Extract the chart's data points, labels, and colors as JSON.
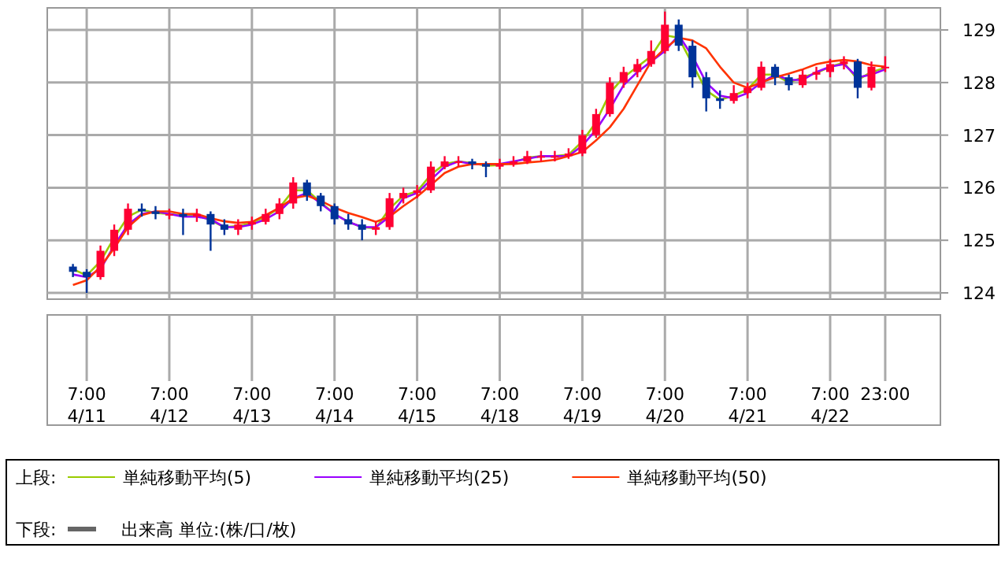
{
  "chart_data": {
    "type": "candlestick",
    "categories": [
      null,
      "7:00 4/11",
      null,
      null,
      null,
      null,
      null,
      "7:00 4/12",
      null,
      null,
      null,
      null,
      null,
      "7:00 4/13",
      null,
      null,
      null,
      null,
      null,
      "7:00 4/14",
      null,
      null,
      null,
      null,
      null,
      "7:00 4/15",
      null,
      null,
      null,
      null,
      null,
      "7:00 4/18",
      null,
      null,
      null,
      null,
      null,
      "7:00 4/19",
      null,
      null,
      null,
      null,
      null,
      "7:00 4/20",
      null,
      null,
      null,
      null,
      null,
      "7:00 4/21",
      null,
      null,
      null,
      null,
      null,
      "7:00 4/22",
      null,
      null,
      null,
      "23:00"
    ],
    "ohlc": [
      [
        124.5,
        124.55,
        124.3,
        124.4
      ],
      [
        124.4,
        124.45,
        124.0,
        124.3
      ],
      [
        124.3,
        124.9,
        124.25,
        124.8
      ],
      [
        124.8,
        125.3,
        124.7,
        125.2
      ],
      [
        125.2,
        125.7,
        125.1,
        125.6
      ],
      [
        125.6,
        125.7,
        125.45,
        125.55
      ],
      [
        125.55,
        125.65,
        125.4,
        125.5
      ],
      [
        125.5,
        125.6,
        125.4,
        125.5
      ],
      [
        125.5,
        125.6,
        125.1,
        125.45
      ],
      [
        125.45,
        125.6,
        125.35,
        125.5
      ],
      [
        125.5,
        125.55,
        124.8,
        125.3
      ],
      [
        125.3,
        125.4,
        125.1,
        125.2
      ],
      [
        125.2,
        125.4,
        125.1,
        125.3
      ],
      [
        125.3,
        125.45,
        125.2,
        125.35
      ],
      [
        125.35,
        125.6,
        125.3,
        125.5
      ],
      [
        125.5,
        125.8,
        125.4,
        125.7
      ],
      [
        125.7,
        126.2,
        125.6,
        126.1
      ],
      [
        126.1,
        126.15,
        125.75,
        125.85
      ],
      [
        125.85,
        125.9,
        125.55,
        125.65
      ],
      [
        125.65,
        125.7,
        125.3,
        125.4
      ],
      [
        125.4,
        125.5,
        125.2,
        125.3
      ],
      [
        125.3,
        125.4,
        125.0,
        125.2
      ],
      [
        125.2,
        125.35,
        125.1,
        125.25
      ],
      [
        125.25,
        125.9,
        125.2,
        125.8
      ],
      [
        125.8,
        126.0,
        125.7,
        125.9
      ],
      [
        125.9,
        126.05,
        125.8,
        125.95
      ],
      [
        125.95,
        126.5,
        125.9,
        126.4
      ],
      [
        126.4,
        126.6,
        126.35,
        126.5
      ],
      [
        126.5,
        126.6,
        126.4,
        126.5
      ],
      [
        126.5,
        126.55,
        126.35,
        126.45
      ],
      [
        126.45,
        126.5,
        126.2,
        126.4
      ],
      [
        126.4,
        126.55,
        126.35,
        126.45
      ],
      [
        126.45,
        126.6,
        126.4,
        126.5
      ],
      [
        126.5,
        126.7,
        126.45,
        126.6
      ],
      [
        126.6,
        126.7,
        126.5,
        126.6
      ],
      [
        126.6,
        126.7,
        126.5,
        126.6
      ],
      [
        126.6,
        126.75,
        126.55,
        126.65
      ],
      [
        126.65,
        127.1,
        126.6,
        127.0
      ],
      [
        127.0,
        127.5,
        126.95,
        127.4
      ],
      [
        127.4,
        128.1,
        127.35,
        128.0
      ],
      [
        128.0,
        128.3,
        127.9,
        128.2
      ],
      [
        128.2,
        128.45,
        128.1,
        128.35
      ],
      [
        128.35,
        128.8,
        128.3,
        128.6
      ],
      [
        128.6,
        129.35,
        128.55,
        129.1
      ],
      [
        129.1,
        129.2,
        128.6,
        128.7
      ],
      [
        128.7,
        128.8,
        127.9,
        128.1
      ],
      [
        128.1,
        128.2,
        127.45,
        127.7
      ],
      [
        127.7,
        127.85,
        127.5,
        127.65
      ],
      [
        127.65,
        127.95,
        127.6,
        127.8
      ],
      [
        127.8,
        128.0,
        127.7,
        127.9
      ],
      [
        127.9,
        128.4,
        127.85,
        128.3
      ],
      [
        128.3,
        128.35,
        127.95,
        128.1
      ],
      [
        128.1,
        128.15,
        127.85,
        127.95
      ],
      [
        127.95,
        128.25,
        127.9,
        128.15
      ],
      [
        128.15,
        128.3,
        128.05,
        128.2
      ],
      [
        128.2,
        128.45,
        128.1,
        128.35
      ],
      [
        128.35,
        128.5,
        128.25,
        128.4
      ],
      [
        128.4,
        128.45,
        127.7,
        127.9
      ],
      [
        127.9,
        128.4,
        127.85,
        128.3
      ],
      [
        128.3,
        128.5,
        128.2,
        128.3
      ]
    ],
    "ylim": [
      123.88,
      129.42
    ],
    "yticks": [
      124,
      125,
      126,
      127,
      128,
      129
    ],
    "grid": true,
    "legend": "bottom",
    "series": [
      {
        "name": "単純移動平均(5)",
        "type": "line",
        "color": "#99cc00",
        "values": [
          124.45,
          124.33,
          124.6,
          125.05,
          125.45,
          125.58,
          125.52,
          125.5,
          125.47,
          125.48,
          125.38,
          125.25,
          125.27,
          125.33,
          125.45,
          125.62,
          125.95,
          125.95,
          125.72,
          125.5,
          125.35,
          125.25,
          125.23,
          125.6,
          125.85,
          125.93,
          126.25,
          126.45,
          126.5,
          126.47,
          126.42,
          126.43,
          126.48,
          126.57,
          126.6,
          126.6,
          126.63,
          126.88,
          127.25,
          127.8,
          128.1,
          128.3,
          128.5,
          128.9,
          128.85,
          128.35,
          127.85,
          127.67,
          127.75,
          127.87,
          128.15,
          128.15,
          128.0,
          128.1,
          128.18,
          128.3,
          128.38,
          128.05,
          128.2,
          128.28
        ]
      },
      {
        "name": "単純移動平均(25)",
        "type": "line",
        "color": "#9900ff",
        "values": [
          124.35,
          124.3,
          124.45,
          124.9,
          125.3,
          125.5,
          125.55,
          125.5,
          125.45,
          125.45,
          125.4,
          125.25,
          125.25,
          125.3,
          125.4,
          125.55,
          125.8,
          125.9,
          125.7,
          125.5,
          125.35,
          125.25,
          125.25,
          125.45,
          125.8,
          125.9,
          126.15,
          126.4,
          126.5,
          126.45,
          126.45,
          126.45,
          126.5,
          126.55,
          126.6,
          126.6,
          126.6,
          126.8,
          127.1,
          127.5,
          127.95,
          128.2,
          128.4,
          128.6,
          128.9,
          128.5,
          128.0,
          127.75,
          127.7,
          127.8,
          128.0,
          128.15,
          128.05,
          128.05,
          128.2,
          128.3,
          128.35,
          128.1,
          128.15,
          128.25
        ]
      },
      {
        "name": "単純移動平均(50)",
        "type": "line",
        "color": "#ff3300",
        "values": [
          124.15,
          124.24,
          124.5,
          124.85,
          125.25,
          125.48,
          125.55,
          125.55,
          125.5,
          125.5,
          125.42,
          125.36,
          125.33,
          125.35,
          125.48,
          125.62,
          125.8,
          125.85,
          125.75,
          125.62,
          125.52,
          125.44,
          125.35,
          125.45,
          125.65,
          125.83,
          126.05,
          126.28,
          126.4,
          126.45,
          126.45,
          126.45,
          126.45,
          126.48,
          126.5,
          126.53,
          126.6,
          126.68,
          126.9,
          127.15,
          127.5,
          127.95,
          128.4,
          128.65,
          128.85,
          128.8,
          128.65,
          128.3,
          128.0,
          127.9,
          128.0,
          128.1,
          128.17,
          128.25,
          128.35,
          128.4,
          128.43,
          128.4,
          128.33,
          128.3
        ]
      },
      {
        "name": "出来高 単位:(株/口/枚)",
        "type": "bar",
        "color": "#666666",
        "values": [
          null,
          null,
          null,
          null,
          null,
          null,
          null,
          null,
          null,
          null,
          null,
          null,
          null,
          null,
          null,
          null,
          null,
          null,
          null,
          null,
          null,
          null,
          null,
          null,
          null,
          null,
          null,
          null,
          null,
          null,
          null,
          null,
          null,
          null,
          null,
          null,
          null,
          null,
          null,
          null,
          null,
          null,
          null,
          null,
          null,
          null,
          null,
          null,
          null,
          null,
          null,
          null,
          null,
          null,
          null,
          null,
          null,
          null,
          null,
          null
        ]
      }
    ],
    "annotations": [
      "上段:",
      "下段:"
    ]
  }
}
